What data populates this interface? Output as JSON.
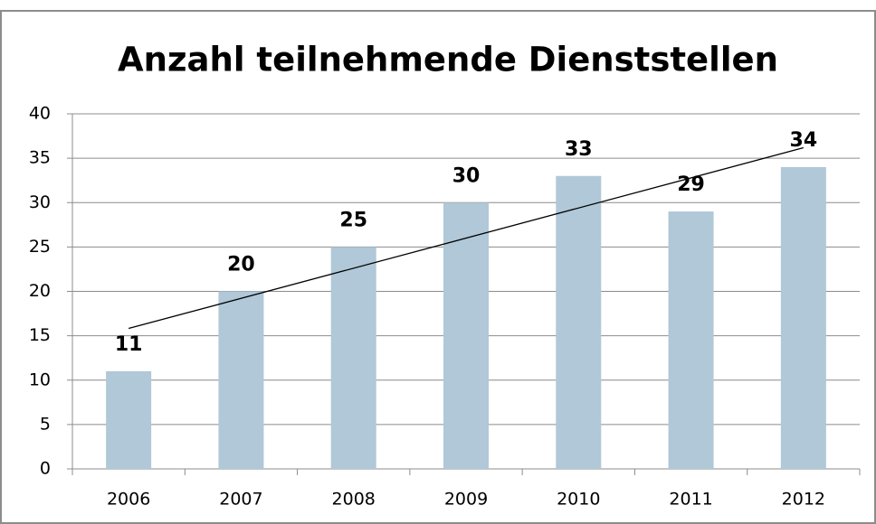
{
  "chart_data": {
    "type": "bar",
    "title": "Anzahl teilnehmende Dienststellen",
    "categories": [
      "2006",
      "2007",
      "2008",
      "2009",
      "2010",
      "2011",
      "2012"
    ],
    "values": [
      11,
      20,
      25,
      30,
      33,
      29,
      34
    ],
    "color": "#b0c8d7",
    "ylim": [
      0,
      40
    ],
    "yticks": [
      0,
      5,
      10,
      15,
      20,
      25,
      30,
      35,
      40
    ],
    "grid": true,
    "trendline": "linear"
  }
}
